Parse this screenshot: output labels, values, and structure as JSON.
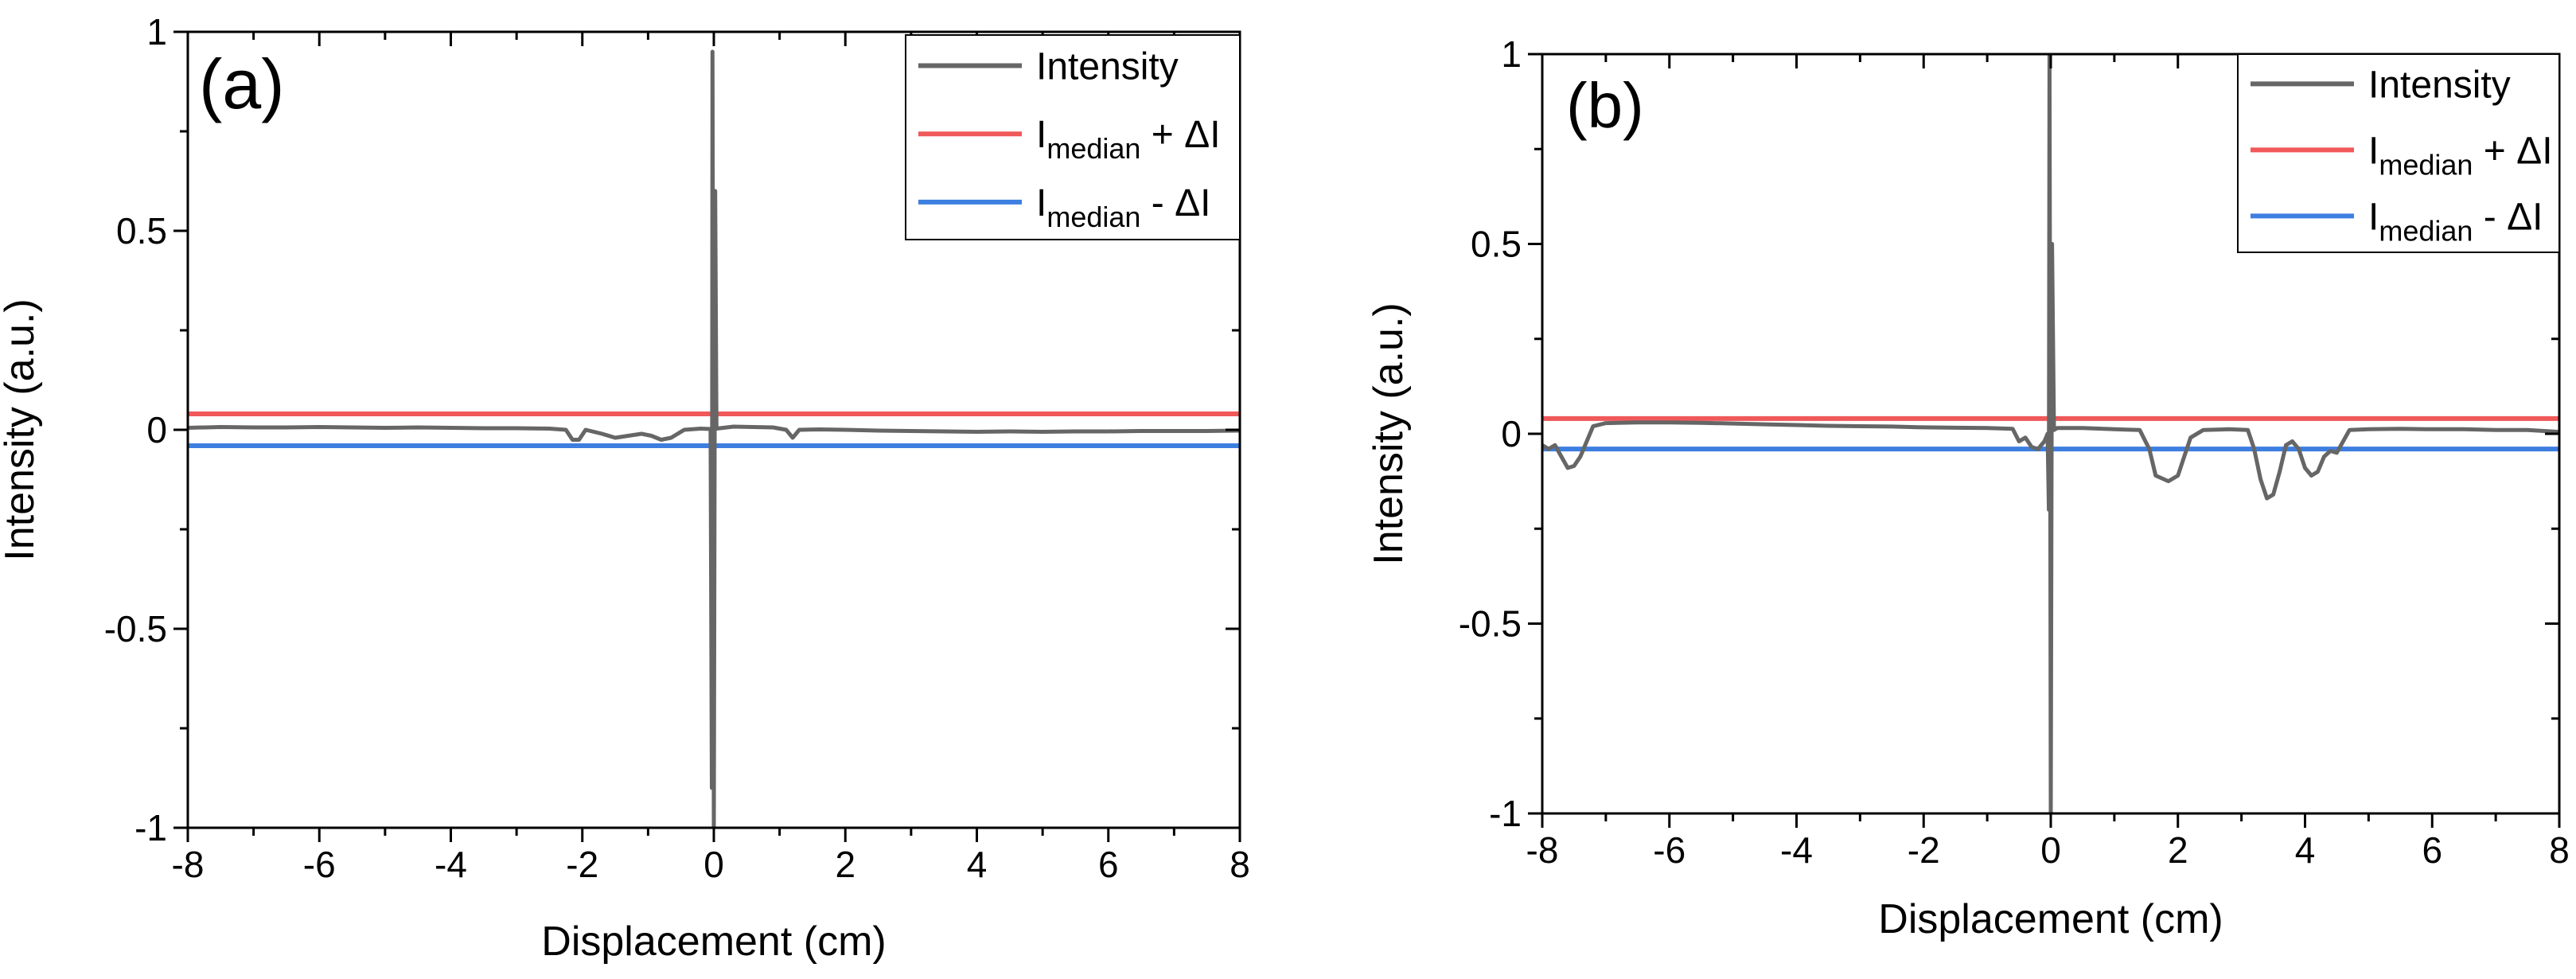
{
  "chart_data": [
    {
      "type": "line",
      "panel_label": "(a)",
      "xlabel": "Displacement (cm)",
      "ylabel": "Intensity (a.u.)",
      "xlim": [
        -8,
        8
      ],
      "ylim": [
        -1,
        1
      ],
      "x_ticks": [
        -8,
        -6,
        -4,
        -2,
        0,
        2,
        4,
        6,
        8
      ],
      "x_tick_labels": [
        "-8",
        "-6",
        "-4",
        "-2",
        "0",
        "2",
        "4",
        "6",
        "8"
      ],
      "y_ticks": [
        -1,
        -0.5,
        0,
        0.5,
        1
      ],
      "y_tick_labels": [
        "-1",
        "-0.5",
        "0",
        "0.5",
        "1"
      ],
      "grid": false,
      "legend_position": "top-right",
      "series": [
        {
          "name": "Intensity",
          "color": "#666666",
          "points": [
            [
              -8,
              0.005
            ],
            [
              -7.5,
              0.007
            ],
            [
              -7,
              0.006
            ],
            [
              -6.5,
              0.006
            ],
            [
              -6,
              0.007
            ],
            [
              -5.5,
              0.006
            ],
            [
              -5,
              0.005
            ],
            [
              -4.5,
              0.006
            ],
            [
              -4,
              0.005
            ],
            [
              -3.5,
              0.004
            ],
            [
              -3,
              0.004
            ],
            [
              -2.5,
              0.003
            ],
            [
              -2.25,
              0.0
            ],
            [
              -2.15,
              -0.025
            ],
            [
              -2.05,
              -0.025
            ],
            [
              -1.95,
              0.0
            ],
            [
              -1.7,
              -0.01
            ],
            [
              -1.5,
              -0.02
            ],
            [
              -1.3,
              -0.015
            ],
            [
              -1.1,
              -0.01
            ],
            [
              -0.95,
              -0.015
            ],
            [
              -0.8,
              -0.025
            ],
            [
              -0.65,
              -0.02
            ],
            [
              -0.45,
              0.0
            ],
            [
              -0.2,
              0.003
            ],
            [
              -0.05,
              0.002
            ],
            [
              -0.03,
              -0.9
            ],
            [
              -0.02,
              0.95
            ],
            [
              -0.01,
              0.1
            ],
            [
              0.0,
              -1.0
            ],
            [
              0.02,
              0.6
            ],
            [
              0.04,
              0.003
            ],
            [
              0.3,
              0.008
            ],
            [
              0.6,
              0.007
            ],
            [
              0.9,
              0.006
            ],
            [
              1.1,
              0.0
            ],
            [
              1.2,
              -0.02
            ],
            [
              1.3,
              0.0
            ],
            [
              1.6,
              0.001
            ],
            [
              2,
              0.0
            ],
            [
              2.5,
              -0.002
            ],
            [
              3,
              -0.003
            ],
            [
              3.5,
              -0.004
            ],
            [
              4,
              -0.005
            ],
            [
              4.5,
              -0.004
            ],
            [
              5,
              -0.005
            ],
            [
              5.5,
              -0.004
            ],
            [
              6,
              -0.004
            ],
            [
              6.5,
              -0.003
            ],
            [
              7,
              -0.003
            ],
            [
              7.5,
              -0.003
            ],
            [
              8,
              -0.002
            ]
          ]
        },
        {
          "name": "Imedian + ΔI",
          "color": "#f0585a",
          "points": [
            [
              -8,
              0.04
            ],
            [
              8,
              0.04
            ]
          ]
        },
        {
          "name": "Imedian - ΔI",
          "color": "#3d7fe0",
          "points": [
            [
              -8,
              -0.04
            ],
            [
              8,
              -0.04
            ]
          ]
        }
      ],
      "legend": [
        {
          "name": "Intensity",
          "main": "Intensity",
          "sub": "",
          "tail": "",
          "color": "#666666"
        },
        {
          "name": "Imedian + ΔI",
          "main": "I",
          "sub": "median",
          "tail": " + ΔI",
          "color": "#f0585a"
        },
        {
          "name": "Imedian - ΔI",
          "main": "I",
          "sub": "median",
          "tail": " - ΔI",
          "color": "#3d7fe0"
        }
      ]
    },
    {
      "type": "line",
      "panel_label": "(b)",
      "xlabel": "Displacement (cm)",
      "ylabel": "Intensity (a.u.)",
      "xlim": [
        -8,
        8
      ],
      "ylim": [
        -1,
        1
      ],
      "x_ticks": [
        -8,
        -6,
        -4,
        -2,
        0,
        2,
        4,
        6,
        8
      ],
      "x_tick_labels": [
        "-8",
        "-6",
        "-4",
        "-2",
        "0",
        "2",
        "4",
        "6",
        "8"
      ],
      "y_ticks": [
        -1,
        -0.5,
        0,
        0.5,
        1
      ],
      "y_tick_labels": [
        "-1",
        "-0.5",
        "0",
        "0.5",
        "1"
      ],
      "grid": false,
      "legend_position": "top-right",
      "series": [
        {
          "name": "Intensity",
          "color": "#666666",
          "points": [
            [
              -8,
              -0.03
            ],
            [
              -7.9,
              -0.04
            ],
            [
              -7.8,
              -0.03
            ],
            [
              -7.7,
              -0.06
            ],
            [
              -7.6,
              -0.09
            ],
            [
              -7.5,
              -0.085
            ],
            [
              -7.4,
              -0.06
            ],
            [
              -7.3,
              -0.02
            ],
            [
              -7.2,
              0.02
            ],
            [
              -7.0,
              0.028
            ],
            [
              -6.5,
              0.03
            ],
            [
              -6,
              0.03
            ],
            [
              -5.5,
              0.029
            ],
            [
              -5,
              0.027
            ],
            [
              -4.5,
              0.025
            ],
            [
              -4,
              0.023
            ],
            [
              -3.5,
              0.021
            ],
            [
              -3,
              0.02
            ],
            [
              -2.5,
              0.019
            ],
            [
              -2,
              0.017
            ],
            [
              -1.5,
              0.016
            ],
            [
              -1,
              0.015
            ],
            [
              -0.6,
              0.013
            ],
            [
              -0.5,
              -0.02
            ],
            [
              -0.4,
              -0.01
            ],
            [
              -0.3,
              -0.035
            ],
            [
              -0.2,
              -0.04
            ],
            [
              -0.1,
              -0.02
            ],
            [
              -0.05,
              0.0
            ],
            [
              -0.03,
              -0.2
            ],
            [
              -0.02,
              1.0
            ],
            [
              -0.01,
              0.15
            ],
            [
              0.0,
              -1.0
            ],
            [
              0.02,
              0.5
            ],
            [
              0.05,
              0.01
            ],
            [
              0.1,
              0.015
            ],
            [
              0.5,
              0.015
            ],
            [
              1.0,
              0.012
            ],
            [
              1.4,
              0.01
            ],
            [
              1.55,
              -0.04
            ],
            [
              1.65,
              -0.11
            ],
            [
              1.85,
              -0.125
            ],
            [
              2.0,
              -0.11
            ],
            [
              2.1,
              -0.06
            ],
            [
              2.2,
              -0.01
            ],
            [
              2.4,
              0.01
            ],
            [
              2.8,
              0.012
            ],
            [
              3.1,
              0.01
            ],
            [
              3.2,
              -0.04
            ],
            [
              3.3,
              -0.12
            ],
            [
              3.4,
              -0.17
            ],
            [
              3.5,
              -0.16
            ],
            [
              3.6,
              -0.1
            ],
            [
              3.7,
              -0.03
            ],
            [
              3.8,
              -0.02
            ],
            [
              3.9,
              -0.04
            ],
            [
              4.0,
              -0.09
            ],
            [
              4.1,
              -0.11
            ],
            [
              4.2,
              -0.1
            ],
            [
              4.3,
              -0.06
            ],
            [
              4.4,
              -0.045
            ],
            [
              4.5,
              -0.05
            ],
            [
              4.6,
              -0.02
            ],
            [
              4.7,
              0.01
            ],
            [
              5,
              0.012
            ],
            [
              5.5,
              0.013
            ],
            [
              6,
              0.012
            ],
            [
              6.5,
              0.012
            ],
            [
              7,
              0.01
            ],
            [
              7.5,
              0.01
            ],
            [
              8,
              0.005
            ]
          ]
        },
        {
          "name": "Imedian + ΔI",
          "color": "#f0585a",
          "points": [
            [
              -8,
              0.04
            ],
            [
              8,
              0.04
            ]
          ]
        },
        {
          "name": "Imedian - ΔI",
          "color": "#3d7fe0",
          "points": [
            [
              -8,
              -0.04
            ],
            [
              8,
              -0.04
            ]
          ]
        }
      ],
      "legend": [
        {
          "name": "Intensity",
          "main": "Intensity",
          "sub": "",
          "tail": "",
          "color": "#666666"
        },
        {
          "name": "Imedian + ΔI",
          "main": "I",
          "sub": "median",
          "tail": " + ΔI",
          "color": "#f0585a"
        },
        {
          "name": "Imedian - ΔI",
          "main": "I",
          "sub": "median",
          "tail": " - ΔI",
          "color": "#3d7fe0"
        }
      ]
    }
  ]
}
